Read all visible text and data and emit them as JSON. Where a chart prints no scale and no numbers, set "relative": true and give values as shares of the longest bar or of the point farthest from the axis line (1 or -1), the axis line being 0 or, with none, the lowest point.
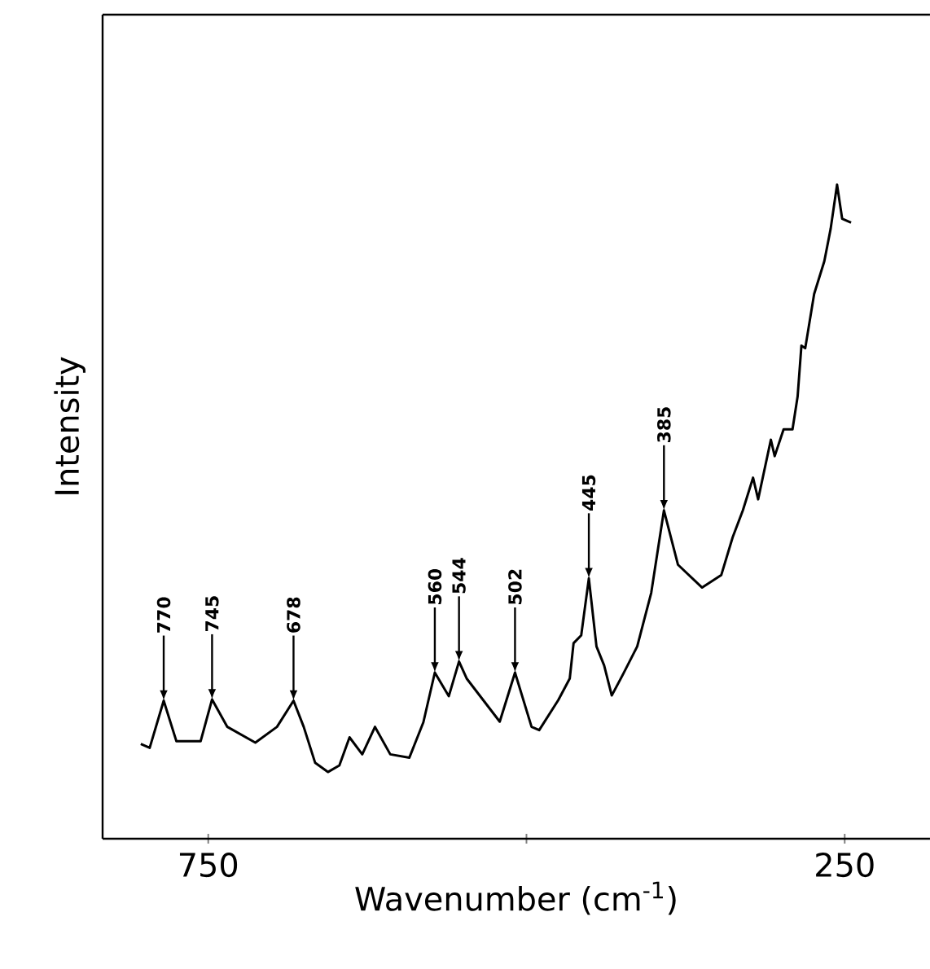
{
  "chart_data": {
    "type": "line",
    "xlabel": "Wavenumber (cm$^{-1}$)",
    "ylabel": "Intensity",
    "relative": true,
    "xlim": [
      833,
      183
    ],
    "xticks": [
      750,
      {
        "value": 500,
        "label": null
      },
      250
    ],
    "color": "#000000",
    "marker": "none",
    "line_style": "solid",
    "x": [
      803,
      796,
      785,
      775,
      756,
      747,
      735,
      713,
      696,
      683,
      675,
      666,
      656,
      647,
      639,
      629,
      619,
      607,
      592,
      581,
      572,
      561,
      553,
      547,
      534,
      521,
      509,
      496,
      490,
      475,
      466,
      463,
      457,
      451,
      445,
      439,
      433,
      424,
      413,
      402,
      392,
      381,
      362,
      347,
      338,
      330,
      322,
      318,
      308,
      305,
      298,
      291,
      287,
      284,
      281,
      274,
      266,
      261,
      256,
      252,
      245
    ],
    "values": [
      0.145,
      0.139,
      0.211,
      0.149,
      0.149,
      0.213,
      0.171,
      0.147,
      0.171,
      0.211,
      0.171,
      0.116,
      0.102,
      0.112,
      0.155,
      0.129,
      0.171,
      0.129,
      0.124,
      0.178,
      0.254,
      0.218,
      0.271,
      0.245,
      0.212,
      0.179,
      0.254,
      0.171,
      0.166,
      0.212,
      0.245,
      0.299,
      0.311,
      0.398,
      0.294,
      0.265,
      0.219,
      0.252,
      0.294,
      0.376,
      0.502,
      0.419,
      0.384,
      0.403,
      0.461,
      0.502,
      0.552,
      0.519,
      0.61,
      0.585,
      0.626,
      0.626,
      0.676,
      0.754,
      0.75,
      0.833,
      0.883,
      0.933,
      1.0,
      0.948,
      0.942
    ],
    "annotations": [
      {
        "text": "770",
        "x": 785,
        "y": 0.211
      },
      {
        "text": "745",
        "x": 747,
        "y": 0.213
      },
      {
        "text": "678",
        "x": 683,
        "y": 0.211
      },
      {
        "text": "560",
        "x": 572,
        "y": 0.254
      },
      {
        "text": "544",
        "x": 553,
        "y": 0.271
      },
      {
        "text": "502",
        "x": 509,
        "y": 0.254
      },
      {
        "text": "445",
        "x": 451,
        "y": 0.398
      },
      {
        "text": "385",
        "x": 392,
        "y": 0.502
      }
    ]
  }
}
